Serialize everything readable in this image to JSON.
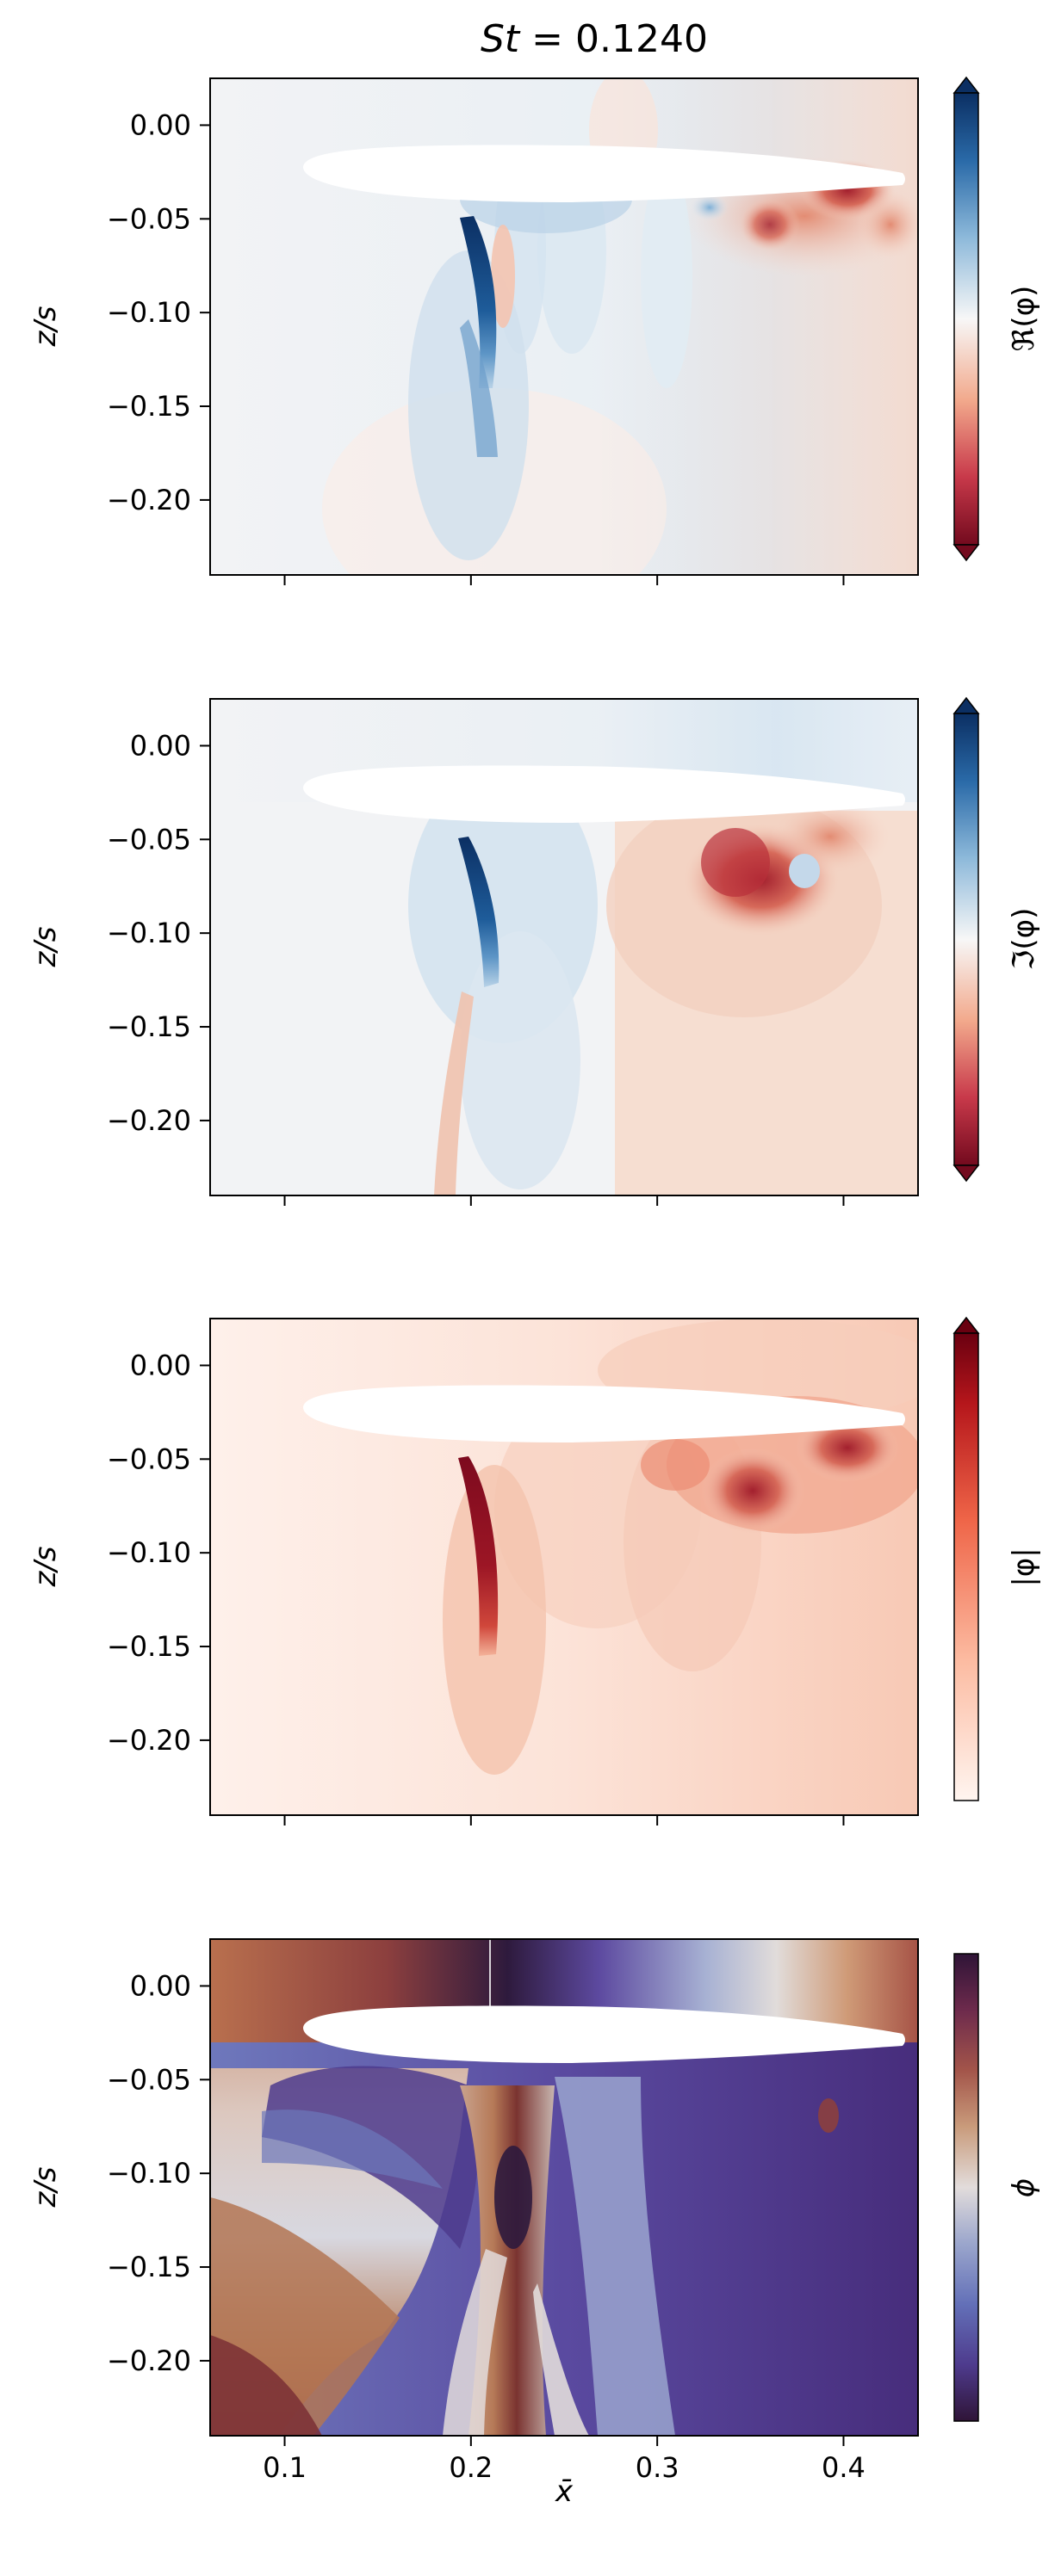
{
  "figure": {
    "title": "St = 0.1240",
    "title_parts": {
      "var": "St",
      "rest": " = 0.1240"
    },
    "x_axis_label": "x̄",
    "x_ticks": [
      "0.1",
      "0.2",
      "0.3",
      "0.4"
    ],
    "y_axis_label": "z/s",
    "y_ticks": [
      "0.00",
      "−0.05",
      "−0.10",
      "−0.15",
      "−0.20"
    ]
  },
  "chart_data": [
    {
      "type": "heatmap",
      "panel": "real",
      "colorbar_label": "ℜ(φ)",
      "colormap": "RdBu (diverging, red-white-blue)",
      "colorbar_extend": "both",
      "x_ticks": [
        0.1,
        0.2,
        0.3,
        0.4
      ],
      "y_ticks": [
        0.0,
        -0.05,
        -0.1,
        -0.15,
        -0.2
      ],
      "xlim": [
        0.06,
        0.44
      ],
      "ylim": [
        -0.24,
        0.025
      ],
      "xlabel": "",
      "ylabel": "z/s",
      "tick_labels_x_visible": false
    },
    {
      "type": "heatmap",
      "panel": "imag",
      "colorbar_label": "ℑ(φ)",
      "colormap": "RdBu (diverging, red-white-blue)",
      "colorbar_extend": "both",
      "x_ticks": [
        0.1,
        0.2,
        0.3,
        0.4
      ],
      "y_ticks": [
        0.0,
        -0.05,
        -0.1,
        -0.15,
        -0.2
      ],
      "xlim": [
        0.06,
        0.44
      ],
      "ylim": [
        -0.24,
        0.025
      ],
      "xlabel": "",
      "ylabel": "z/s",
      "tick_labels_x_visible": false
    },
    {
      "type": "heatmap",
      "panel": "magnitude",
      "colorbar_label": "|φ|",
      "colormap": "Reds (white to dark red)",
      "colorbar_extend": "max",
      "x_ticks": [
        0.1,
        0.2,
        0.3,
        0.4
      ],
      "y_ticks": [
        0.0,
        -0.05,
        -0.1,
        -0.15,
        -0.2
      ],
      "xlim": [
        0.06,
        0.44
      ],
      "ylim": [
        -0.24,
        0.025
      ],
      "xlabel": "",
      "ylabel": "z/s",
      "tick_labels_x_visible": false
    },
    {
      "type": "heatmap",
      "panel": "phase",
      "colorbar_label": "ϕ",
      "colormap": "twilight_shifted (cyclic)",
      "colorbar_extend": "neither",
      "x_ticks": [
        0.1,
        0.2,
        0.3,
        0.4
      ],
      "y_ticks": [
        0.0,
        -0.05,
        -0.1,
        -0.15,
        -0.2
      ],
      "xlim": [
        0.06,
        0.44
      ],
      "ylim": [
        -0.24,
        0.025
      ],
      "xlabel": "x̄",
      "ylabel": "z/s",
      "tick_labels_x_visible": true
    }
  ],
  "colors": {
    "blue_dark": "#0b3a6e",
    "blue_mid": "#4f8cc4",
    "blue_light": "#dbe8f2",
    "neutral": "#f2f3f5",
    "red_light": "#f7dccf",
    "red_mid": "#e07b62",
    "red_dark": "#8e0f22",
    "phase_purple_dark": "#2e1a3d",
    "phase_purple": "#5d4aa0",
    "phase_blue_light": "#cfd3e3",
    "phase_brown": "#b9704e",
    "phase_brown_dark": "#6e2a2b"
  }
}
